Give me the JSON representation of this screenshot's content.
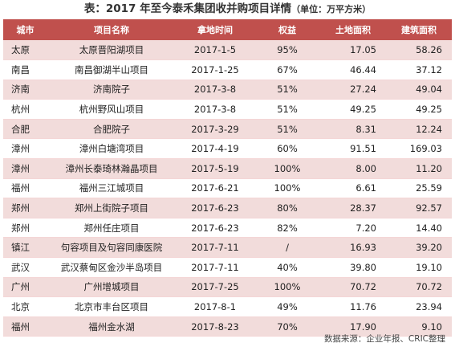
{
  "title": {
    "main": "表：2017 年至今泰禾集团收并购项目详情",
    "unit": "（单位：万平方米）"
  },
  "columns": [
    "城市",
    "项目名称",
    "拿地时间",
    "权益",
    "土地面积",
    "建筑面积"
  ],
  "rows": [
    [
      "太原",
      "太原晋阳湖项目",
      "2017-1-5",
      "95%",
      "17.05",
      "58.26"
    ],
    [
      "南昌",
      "南昌御湖半山项目",
      "2017-1-25",
      "67%",
      "46.44",
      "37.12"
    ],
    [
      "济南",
      "济南院子",
      "2017-3-8",
      "51%",
      "27.24",
      "49.04"
    ],
    [
      "杭州",
      "杭州野风山项目",
      "2017-3-8",
      "51%",
      "49.25",
      "49.25"
    ],
    [
      "合肥",
      "合肥院子",
      "2017-3-29",
      "51%",
      "8.31",
      "12.24"
    ],
    [
      "漳州",
      "漳州白塘湾项目",
      "2017-4-19",
      "60%",
      "91.51",
      "169.03"
    ],
    [
      "漳州",
      "漳州长泰琦林瀚晶项目",
      "2017-5-19",
      "100%",
      "8.00",
      "11.20"
    ],
    [
      "福州",
      "福州三江城项目",
      "2017-6-21",
      "100%",
      "6.61",
      "25.59"
    ],
    [
      "郑州",
      "郑州上街院子项目",
      "2017-6-23",
      "80%",
      "28.37",
      "92.57"
    ],
    [
      "郑州",
      "郑州任庄项目",
      "2017-6-23",
      "82%",
      "7.20",
      "14.40"
    ],
    [
      "镇江",
      "句容项目及句容同康医院",
      "2017-7-11",
      "/",
      "16.93",
      "39.20"
    ],
    [
      "武汉",
      "武汉蔡甸区金沙半岛项目",
      "2017-7-11",
      "40%",
      "39.80",
      "19.10"
    ],
    [
      "广州",
      "广州增城项目",
      "2017-7-25",
      "100%",
      "70.72",
      "70.72"
    ],
    [
      "北京",
      "北京市丰台区项目",
      "2017-8-1",
      "49%",
      "11.76",
      "23.94"
    ],
    [
      "福州",
      "福州金水湖",
      "2017-8-23",
      "70%",
      "17.90",
      "9.10"
    ]
  ],
  "source": "数据来源：企业年报、CRIC整理",
  "colors": {
    "header_bg": "#c0504d",
    "stripe_bg": "#f2dcdb",
    "header_text": "#ffffff"
  }
}
